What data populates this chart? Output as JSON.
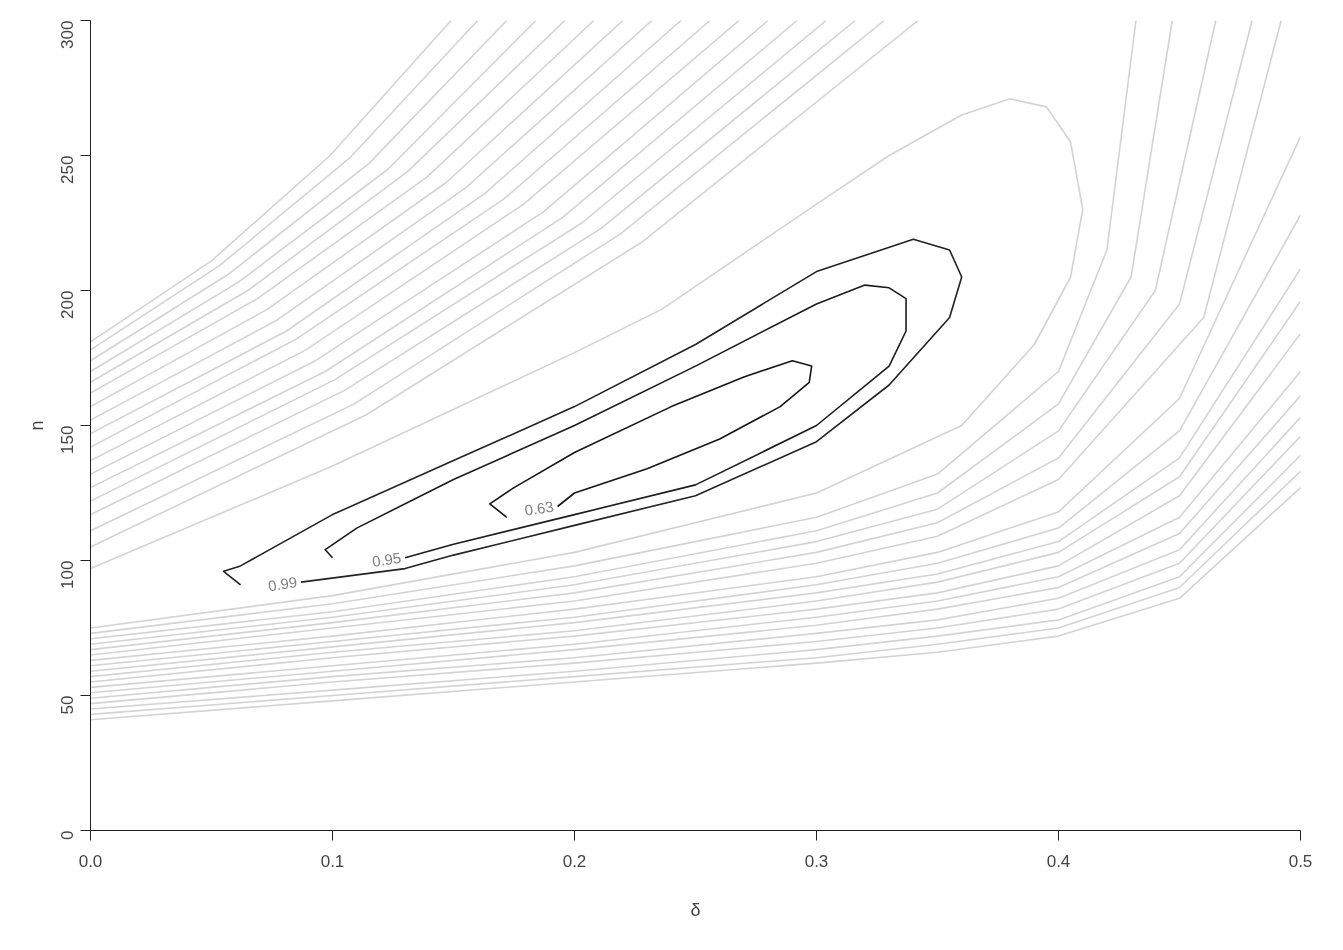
{
  "chart_data": {
    "type": "line",
    "xlabel": "δ",
    "ylabel": "n",
    "xlim": [
      0,
      0.5
    ],
    "ylim": [
      0,
      300
    ],
    "xticks": [
      {
        "value": 0,
        "label": "0.0"
      },
      0.1,
      0.2,
      0.3,
      0.4,
      0.5
    ],
    "yticks": [
      0,
      50,
      100,
      150,
      200,
      250,
      300
    ],
    "grid": false,
    "legend": false,
    "marker": "none",
    "line_style": "solid",
    "series": [
      {
        "color": "#d3d3d3",
        "x": [
          0,
          0.05,
          0.099,
          0.149
        ],
        "values": [
          181,
          211,
          250,
          300
        ]
      },
      {
        "color": "#d3d3d3",
        "x": [
          0,
          0.053,
          0.107,
          0.16
        ],
        "values": [
          178,
          209,
          249,
          300
        ]
      },
      {
        "color": "#d3d3d3",
        "x": [
          0,
          0.057,
          0.115,
          0.172
        ],
        "values": [
          174,
          206,
          247,
          300
        ]
      },
      {
        "color": "#d3d3d3",
        "x": [
          0,
          0.061,
          0.123,
          0.184
        ],
        "values": [
          170,
          203,
          245,
          300
        ]
      },
      {
        "color": "#d3d3d3",
        "x": [
          0,
          0.065,
          0.131,
          0.196
        ],
        "values": [
          166,
          200,
          244,
          300
        ]
      },
      {
        "color": "#d3d3d3",
        "x": [
          0,
          0.069,
          0.139,
          0.208
        ],
        "values": [
          162,
          197,
          242,
          300
        ]
      },
      {
        "color": "#d3d3d3",
        "x": [
          0,
          0.073,
          0.147,
          0.22
        ],
        "values": [
          157,
          193,
          240,
          300
        ]
      },
      {
        "color": "#d3d3d3",
        "x": [
          0,
          0.077,
          0.155,
          0.232
        ],
        "values": [
          152,
          189,
          238,
          300
        ]
      },
      {
        "color": "#d3d3d3",
        "x": [
          0,
          0.081,
          0.163,
          0.244
        ],
        "values": [
          147,
          185,
          236,
          300
        ]
      },
      {
        "color": "#d3d3d3",
        "x": [
          0,
          0.085,
          0.171,
          0.256
        ],
        "values": [
          142,
          182,
          234,
          300
        ]
      },
      {
        "color": "#d3d3d3",
        "x": [
          0,
          0.089,
          0.179,
          0.268
        ],
        "values": [
          137,
          178,
          232,
          300
        ]
      },
      {
        "color": "#d3d3d3",
        "x": [
          0,
          0.093,
          0.187,
          0.28
        ],
        "values": [
          132,
          174,
          229,
          300
        ]
      },
      {
        "color": "#d3d3d3",
        "x": [
          0,
          0.097,
          0.195,
          0.292
        ],
        "values": [
          127,
          170,
          227,
          300
        ]
      },
      {
        "color": "#d3d3d3",
        "x": [
          0,
          0.101,
          0.203,
          0.304
        ],
        "values": [
          122,
          167,
          225,
          300
        ]
      },
      {
        "color": "#d3d3d3",
        "x": [
          0,
          0.105,
          0.211,
          0.316
        ],
        "values": [
          117,
          163,
          223,
          300
        ]
      },
      {
        "color": "#d3d3d3",
        "x": [
          0,
          0.109,
          0.219,
          0.328
        ],
        "values": [
          111,
          158,
          221,
          300
        ]
      },
      {
        "color": "#d3d3d3",
        "x": [
          0,
          0.114,
          0.228,
          0.342
        ],
        "values": [
          105,
          154,
          218,
          300
        ]
      },
      {
        "color": "#d3d3d3",
        "x": [
          0,
          0.1,
          0.2,
          0.236,
          0.3,
          0.33,
          0.36,
          0.38,
          0.395,
          0.405,
          0.41,
          0.405,
          0.39,
          0.36,
          0.3,
          0.2,
          0.1,
          0
        ],
        "values": [
          97,
          135,
          177,
          193,
          232,
          250,
          265,
          271,
          268,
          255,
          230,
          205,
          180,
          150,
          125,
          103,
          87,
          75
        ]
      },
      {
        "color": "#d3d3d3",
        "x": [
          0,
          0.1,
          0.2,
          0.3,
          0.35,
          0.4,
          0.42,
          0.432
        ],
        "values": [
          73,
          84,
          98,
          116,
          132,
          170,
          215,
          300
        ]
      },
      {
        "color": "#d3d3d3",
        "x": [
          0,
          0.1,
          0.2,
          0.3,
          0.35,
          0.4,
          0.43,
          0.447
        ],
        "values": [
          71,
          81,
          94,
          111,
          125,
          158,
          205,
          300
        ]
      },
      {
        "color": "#d3d3d3",
        "x": [
          0,
          0.1,
          0.2,
          0.3,
          0.35,
          0.4,
          0.44,
          0.465
        ],
        "values": [
          69,
          79,
          91,
          107,
          119,
          148,
          200,
          300
        ]
      },
      {
        "color": "#d3d3d3",
        "x": [
          0,
          0.1,
          0.2,
          0.3,
          0.35,
          0.4,
          0.45,
          0.48
        ],
        "values": [
          67,
          77,
          88,
          103,
          114,
          138,
          195,
          300
        ]
      },
      {
        "color": "#d3d3d3",
        "x": [
          0,
          0.1,
          0.2,
          0.3,
          0.35,
          0.4,
          0.46,
          0.492
        ],
        "values": [
          65,
          75,
          85,
          99,
          109,
          130,
          190,
          300
        ]
      },
      {
        "color": "#d3d3d3",
        "x": [
          0,
          0.1,
          0.2,
          0.3,
          0.35,
          0.4,
          0.45,
          0.5
        ],
        "values": [
          63,
          72,
          82,
          94,
          103,
          118,
          160,
          257
        ]
      },
      {
        "color": "#d3d3d3",
        "x": [
          0,
          0.1,
          0.2,
          0.3,
          0.35,
          0.4,
          0.45,
          0.5
        ],
        "values": [
          61,
          70,
          79,
          91,
          99,
          112,
          148,
          228
        ]
      },
      {
        "color": "#d3d3d3",
        "x": [
          0,
          0.1,
          0.2,
          0.3,
          0.35,
          0.4,
          0.45,
          0.5
        ],
        "values": [
          59,
          68,
          77,
          88,
          95,
          107,
          138,
          208
        ]
      },
      {
        "color": "#d3d3d3",
        "x": [
          0,
          0.1,
          0.2,
          0.3,
          0.35,
          0.4,
          0.45,
          0.5
        ],
        "values": [
          57,
          66,
          74,
          85,
          92,
          103,
          131,
          196
        ]
      },
      {
        "color": "#d3d3d3",
        "x": [
          0,
          0.1,
          0.2,
          0.3,
          0.35,
          0.4,
          0.45,
          0.5
        ],
        "values": [
          55,
          64,
          72,
          82,
          88,
          98,
          124,
          184
        ]
      },
      {
        "color": "#d3d3d3",
        "x": [
          0,
          0.1,
          0.2,
          0.3,
          0.35,
          0.4,
          0.45,
          0.5
        ],
        "values": [
          53,
          61,
          69,
          79,
          85,
          94,
          116,
          170
        ]
      },
      {
        "color": "#d3d3d3",
        "x": [
          0,
          0.1,
          0.2,
          0.3,
          0.35,
          0.4,
          0.45,
          0.5
        ],
        "values": [
          51,
          59,
          67,
          76,
          82,
          90,
          110,
          161
        ]
      },
      {
        "color": "#d3d3d3",
        "x": [
          0,
          0.1,
          0.2,
          0.3,
          0.35,
          0.4,
          0.45,
          0.5
        ],
        "values": [
          49,
          57,
          64,
          73,
          78,
          86,
          104,
          153
        ]
      },
      {
        "color": "#d3d3d3",
        "x": [
          0,
          0.1,
          0.2,
          0.3,
          0.35,
          0.4,
          0.45,
          0.5
        ],
        "values": [
          47,
          55,
          62,
          70,
          75,
          82,
          99,
          146
        ]
      },
      {
        "color": "#d3d3d3",
        "x": [
          0,
          0.1,
          0.2,
          0.3,
          0.35,
          0.4,
          0.45,
          0.5
        ],
        "values": [
          45,
          52,
          59,
          67,
          72,
          78,
          94,
          139
        ]
      },
      {
        "color": "#d3d3d3",
        "x": [
          0,
          0.1,
          0.2,
          0.3,
          0.35,
          0.4,
          0.45,
          0.5
        ],
        "values": [
          43,
          50,
          57,
          64,
          69,
          75,
          90,
          133
        ]
      },
      {
        "color": "#d3d3d3",
        "x": [
          0,
          0.1,
          0.2,
          0.3,
          0.35,
          0.4,
          0.45,
          0.5
        ],
        "values": [
          41,
          48,
          55,
          62,
          66,
          72,
          86,
          127
        ]
      },
      {
        "name": "0.99",
        "color": "#222222",
        "x": [
          0.062,
          0.055,
          0.062,
          0.1,
          0.15,
          0.2,
          0.25,
          0.3,
          0.34,
          0.355,
          0.36,
          0.355,
          0.33,
          0.3,
          0.25,
          0.2,
          0.15,
          0.13,
          0.087
        ],
        "values": [
          91,
          96,
          98,
          117,
          137,
          157,
          180,
          207,
          219,
          215,
          205,
          190,
          165,
          144,
          124,
          113,
          102,
          97,
          92
        ]
      },
      {
        "name": "0.95",
        "color": "#1c1c1c",
        "x": [
          0.1,
          0.097,
          0.11,
          0.15,
          0.2,
          0.25,
          0.3,
          0.32,
          0.33,
          0.337,
          0.337,
          0.33,
          0.3,
          0.25,
          0.2,
          0.15,
          0.13
        ],
        "values": [
          101,
          104,
          112,
          130,
          150,
          172,
          195,
          202,
          201,
          197,
          185,
          172,
          150,
          128,
          117,
          106,
          101
        ]
      },
      {
        "name": "0.63",
        "color": "#161616",
        "x": [
          0.172,
          0.165,
          0.175,
          0.2,
          0.24,
          0.27,
          0.29,
          0.298,
          0.297,
          0.285,
          0.26,
          0.23,
          0.2,
          0.193
        ],
        "values": [
          116,
          121,
          127,
          140,
          157,
          168,
          174,
          172,
          166,
          157,
          145,
          134,
          125,
          120
        ]
      }
    ]
  }
}
